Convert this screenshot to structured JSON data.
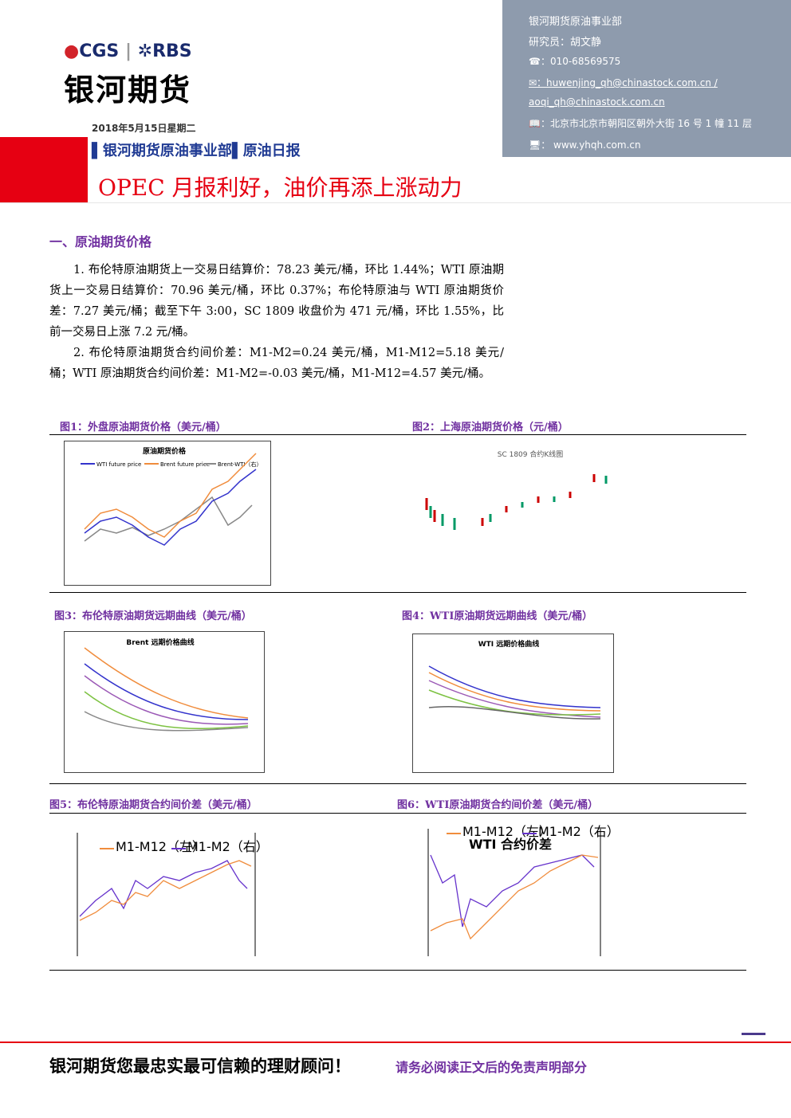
{
  "header": {
    "logo_brand": "CGS",
    "logo_partner": "RBS",
    "company": "银河期货",
    "date": "2018年5月15日星期二",
    "department_line": "银河期货原油事业部",
    "report_type": "原油日报",
    "title": "OPEC 月报利好，油价再添上涨动力"
  },
  "contact": {
    "department": "银河期货原油事业部",
    "analyst": "研究员：胡文静",
    "phone": "☎：010-68569575",
    "email": "✉：huwenjing_qh@chinastock.com.cn /",
    "email2": "aoqi_qh@chinastock.com.cn",
    "address": "📖：北京市北京市朝阳区朝外大街 16 号 1 幢 11 层",
    "website": "🖥：  www.yhqh.com.cn"
  },
  "section": {
    "heading": "一、原油期货价格",
    "paragraphs": [
      "1. 布伦特原油期货上一交易日结算价：78.23 美元/桶，环比 1.44%；WTI 原油期货上一交易日结算价：70.96 美元/桶，环比 0.37%；布伦特原油与 WTI 原油期货价差：7.27 美元/桶；截至下午 3:00，SC 1809 收盘价为 471 元/桶，环比 1.55%，比前一交易日上涨 7.2 元/桶。",
      "2. 布伦特原油期货合约间价差：M1-M2=0.24 美元/桶，M1-M12=5.18 美元/桶；WTI 原油期货合约间价差：M1-M2=-0.03 美元/桶，M1-M12=4.57 美元/桶。"
    ]
  },
  "figures": [
    {
      "caption": "图1：外盘原油期货价格（美元/桶）",
      "chart_title": "原油期货价格",
      "legend": [
        "WTI future price",
        "Brent future price",
        "Brent-WTI（右）"
      ]
    },
    {
      "caption": "图2：上海原油期货价格（元/桶）",
      "chart_title": "SC 1809 合约K线图",
      "legend": []
    },
    {
      "caption": "图3：布伦特原油期货远期曲线（美元/桶）",
      "chart_title": "Brent 远期价格曲线",
      "legend": []
    },
    {
      "caption": "图4：WTI原油期货远期曲线（美元/桶）",
      "chart_title": "WTI 远期价格曲线",
      "legend": []
    },
    {
      "caption": "图5：布伦特原油期货合约间价差（美元/桶）",
      "chart_title": "",
      "legend": [
        "M1-M12（左）",
        "M1-M2（右）"
      ]
    },
    {
      "caption": "图6：WTI原油期货合约间价差（美元/桶）",
      "chart_title": "WTI 合约价差",
      "legend": [
        "M1-M12（左）",
        "M1-M2（右）"
      ]
    }
  ],
  "footer": {
    "slogan": "银河期货您最忠实最可信赖的理财顾问！",
    "disclaimer": "请务必阅读正文后的免责声明部分"
  }
}
